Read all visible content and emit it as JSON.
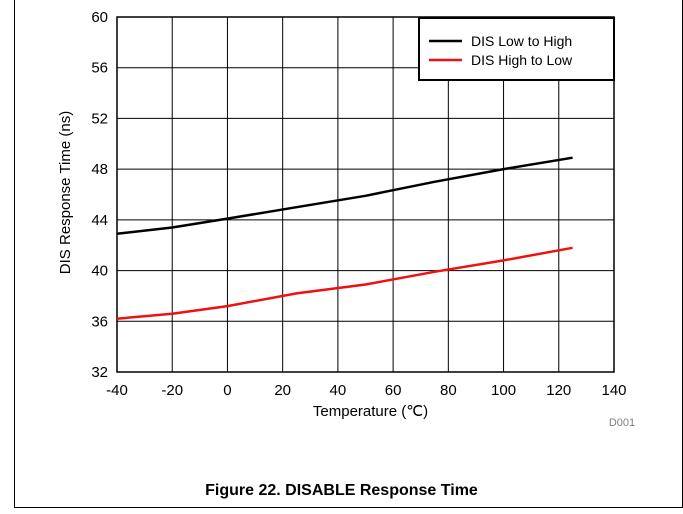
{
  "chart_data": {
    "type": "line",
    "xlabel": "Temperature (℃)",
    "ylabel": "DIS Response Time (ns)",
    "xlim": [
      -40,
      140
    ],
    "ylim": [
      32,
      60
    ],
    "xticks": [
      -40,
      -20,
      0,
      20,
      40,
      60,
      80,
      100,
      120,
      140
    ],
    "yticks": [
      32,
      36,
      40,
      44,
      48,
      52,
      56,
      60
    ],
    "grid": true,
    "legend_position": "top-right",
    "series": [
      {
        "name": "DIS Low to High",
        "color": "#000000",
        "x": [
          -40,
          -20,
          0,
          25,
          50,
          75,
          100,
          125
        ],
        "y": [
          42.9,
          43.4,
          44.1,
          45.0,
          45.9,
          47.0,
          48.0,
          48.9
        ]
      },
      {
        "name": "DIS High to Low",
        "color": "#ee1111",
        "x": [
          -40,
          -20,
          0,
          25,
          50,
          75,
          100,
          125
        ],
        "y": [
          36.2,
          36.6,
          37.2,
          38.2,
          38.9,
          39.9,
          40.8,
          41.8
        ]
      }
    ],
    "code_label": "D001"
  },
  "caption": "Figure 22. DISABLE Response Time"
}
